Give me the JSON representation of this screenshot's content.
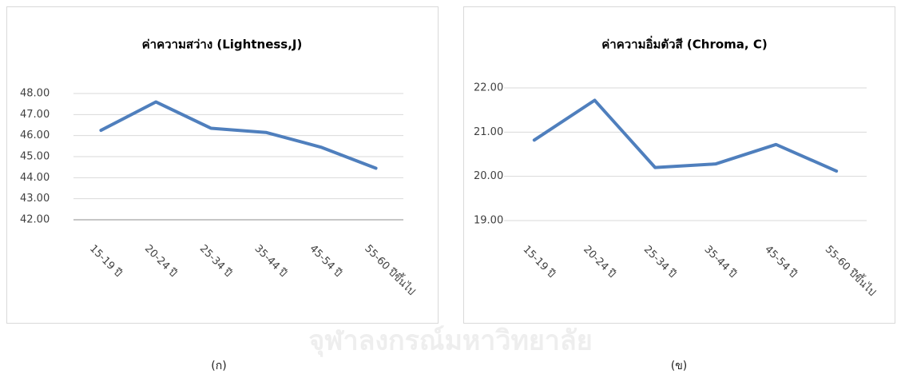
{
  "charts": [
    {
      "chart_data": {
        "type": "line",
        "title": "ค่าความสว่าง (Lightness,J)",
        "categories": [
          "15-19 ปี",
          "20-24 ปี",
          "25-34 ปี",
          "35-44 ปี",
          "45-54 ปี",
          "55-60 ปีขึ้นไป"
        ],
        "values": [
          46.25,
          47.6,
          46.35,
          46.15,
          45.45,
          44.45
        ],
        "color": "#4f7fbd",
        "ylim": [
          42,
          48
        ],
        "yticks": [
          {
            "value": 42,
            "label": "42.00"
          },
          {
            "value": 43,
            "label": "43.00"
          },
          {
            "value": 44,
            "label": "44.00"
          },
          {
            "value": 45,
            "label": "45.00"
          },
          {
            "value": 46,
            "label": "46.00"
          },
          {
            "value": 47,
            "label": "47.00"
          },
          {
            "value": 48,
            "label": "48.00"
          }
        ],
        "grid": true
      },
      "caption": "(ก)"
    },
    {
      "chart_data": {
        "type": "line",
        "title": "ค่าความอิ่มตัวสี (Chroma, C)",
        "categories": [
          "15-19 ปี",
          "20-24 ปี",
          "25-34 ปี",
          "35-44 ปี",
          "45-54 ปี",
          "55-60 ปีขึ้นไป"
        ],
        "values": [
          20.82,
          21.72,
          20.2,
          20.28,
          20.72,
          20.12
        ],
        "color": "#4f7fbd",
        "ylim": [
          19,
          22
        ],
        "yticks": [
          {
            "value": 19,
            "label": "19.00"
          },
          {
            "value": 20,
            "label": "20.00"
          },
          {
            "value": 21,
            "label": "21.00"
          },
          {
            "value": 22,
            "label": "22.00"
          }
        ],
        "grid": true
      },
      "caption": "(ข)"
    }
  ],
  "watermark": "จุฬาลงกรณ์มหาวิทยาลัย"
}
